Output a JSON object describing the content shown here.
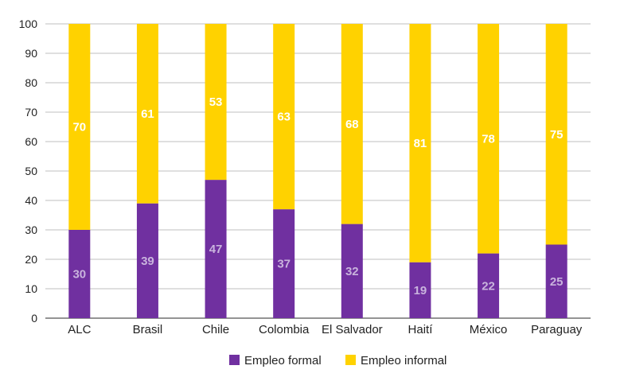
{
  "chart_data": {
    "type": "bar",
    "stacked": true,
    "categories": [
      "ALC",
      "Brasil",
      "Chile",
      "Colombia",
      "El Salvador",
      "Haití",
      "México",
      "Paraguay"
    ],
    "series": [
      {
        "name": "Empleo formal",
        "color": "#7030A0",
        "label_color": "#C9B3DD",
        "values": [
          30,
          39,
          47,
          37,
          32,
          19,
          22,
          25
        ]
      },
      {
        "name": "Empleo informal",
        "color": "#FFD200",
        "label_color": "#FFFFFF",
        "values": [
          70,
          61,
          53,
          63,
          68,
          81,
          78,
          75
        ]
      }
    ],
    "ylim": [
      0,
      100
    ],
    "yticks": [
      0,
      10,
      20,
      30,
      40,
      50,
      60,
      70,
      80,
      90,
      100
    ],
    "grid": true,
    "legend_position": "bottom"
  }
}
